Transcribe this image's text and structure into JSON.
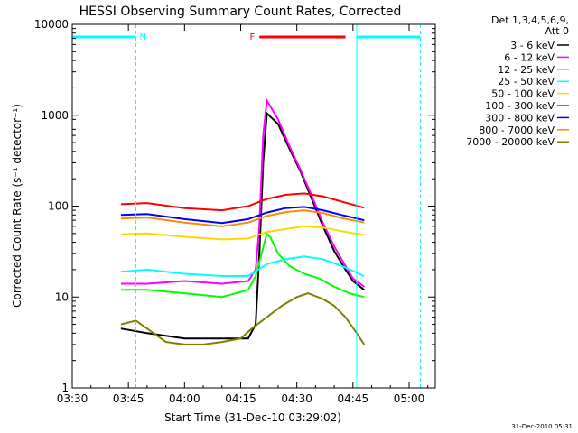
{
  "chart_data": {
    "type": "line",
    "title": "HESSI Observing Summary Count Rates, Corrected",
    "xlabel": "Start Time (31-Dec-10 03:29:02)",
    "ylabel": "Corrected Count Rate (s⁻¹ detector⁻¹)",
    "yscale": "log",
    "ylim": [
      1,
      10000
    ],
    "xlim_minutes_after_0330": [
      0,
      97
    ],
    "x_ticks": [
      "03:30",
      "03:45",
      "04:00",
      "04:15",
      "04:30",
      "04:45",
      "05:00"
    ],
    "y_ticks": [
      "1",
      "10",
      "100",
      "1000",
      "10000"
    ],
    "legend_header": [
      "Det 1,3,4,5,6,9,",
      "Att 0"
    ],
    "legend_position": "right",
    "footer_date": "31-Dec-2010 05:31",
    "x_unit": "minutes after 03:30",
    "annotations": [
      {
        "text": "N",
        "color": "#00ffff",
        "x_start": 0,
        "x_end": 17
      },
      {
        "text": "F",
        "color": "#ff0000",
        "x_start": 50,
        "x_end": 73
      },
      {
        "text": "",
        "color": "#00ffff",
        "x_start": 76,
        "x_end": 93
      }
    ],
    "vlines": [
      {
        "x": 0,
        "color": "#00ffff",
        "style": "solid"
      },
      {
        "x": 17,
        "color": "#00ffff",
        "style": "dashed"
      },
      {
        "x": 76,
        "color": "#00ffff",
        "style": "solid"
      },
      {
        "x": 93,
        "color": "#00ffff",
        "style": "dashed"
      }
    ],
    "series": [
      {
        "name": "3 - 6 keV",
        "color": "#000000",
        "x": [
          13,
          20,
          30,
          40,
          47,
          49,
          50,
          51,
          52,
          55,
          58,
          61,
          64,
          67,
          70,
          73,
          75,
          78
        ],
        "y": [
          4.5,
          4,
          3.5,
          3.5,
          3.5,
          5,
          30,
          300,
          1050,
          800,
          430,
          240,
          120,
          60,
          32,
          20,
          15,
          12
        ]
      },
      {
        "name": "6 - 12 keV",
        "color": "#ff00ff",
        "x": [
          13,
          20,
          30,
          40,
          47,
          49,
          50,
          51,
          52,
          55,
          58,
          61,
          64,
          67,
          70,
          73,
          75,
          78
        ],
        "y": [
          14,
          14,
          15,
          14,
          15,
          20,
          60,
          600,
          1450,
          900,
          460,
          250,
          130,
          65,
          36,
          22,
          16,
          13
        ]
      },
      {
        "name": "12 - 25 keV",
        "color": "#00ff00",
        "x": [
          13,
          20,
          30,
          40,
          47,
          49,
          51,
          52,
          53,
          55,
          58,
          62,
          66,
          70,
          74,
          78
        ],
        "y": [
          12,
          12,
          11,
          10,
          12,
          17,
          35,
          50,
          45,
          30,
          22,
          18,
          16,
          13,
          11,
          10
        ]
      },
      {
        "name": "25 - 50 keV",
        "color": "#00ffff",
        "x": [
          13,
          20,
          30,
          40,
          47,
          52,
          57,
          62,
          67,
          72,
          78
        ],
        "y": [
          19,
          20,
          18,
          17,
          17,
          23,
          26,
          28,
          26,
          22,
          17
        ]
      },
      {
        "name": "50 - 100 keV",
        "color": "#ffd700",
        "x": [
          13,
          20,
          30,
          40,
          47,
          52,
          57,
          62,
          67,
          72,
          78
        ],
        "y": [
          49,
          50,
          46,
          43,
          44,
          52,
          56,
          60,
          58,
          53,
          48
        ]
      },
      {
        "name": "100 - 300 keV",
        "color": "#ff0000",
        "x": [
          13,
          20,
          30,
          40,
          47,
          52,
          57,
          62,
          67,
          72,
          78
        ],
        "y": [
          105,
          108,
          95,
          90,
          100,
          120,
          133,
          138,
          128,
          112,
          96
        ]
      },
      {
        "name": "300 - 800 keV",
        "color": "#0000ff",
        "x": [
          13,
          20,
          30,
          40,
          47,
          52,
          57,
          62,
          67,
          72,
          78
        ],
        "y": [
          80,
          82,
          72,
          65,
          72,
          85,
          95,
          98,
          90,
          80,
          70
        ]
      },
      {
        "name": "800 - 7000 keV",
        "color": "#ff8c00",
        "x": [
          13,
          20,
          30,
          40,
          47,
          52,
          57,
          62,
          67,
          72,
          78
        ],
        "y": [
          73,
          75,
          66,
          60,
          66,
          78,
          86,
          90,
          84,
          74,
          66
        ]
      },
      {
        "name": "7000 - 20000 keV",
        "color": "#808000",
        "x": [
          13,
          17,
          20,
          25,
          30,
          35,
          40,
          45,
          48,
          52,
          56,
          60,
          63,
          67,
          70,
          73,
          76,
          78
        ],
        "y": [
          5,
          5.5,
          4.5,
          3.2,
          3,
          3,
          3.2,
          3.5,
          4.5,
          6,
          8,
          10,
          11,
          9.5,
          8,
          6,
          4,
          3
        ]
      }
    ]
  }
}
